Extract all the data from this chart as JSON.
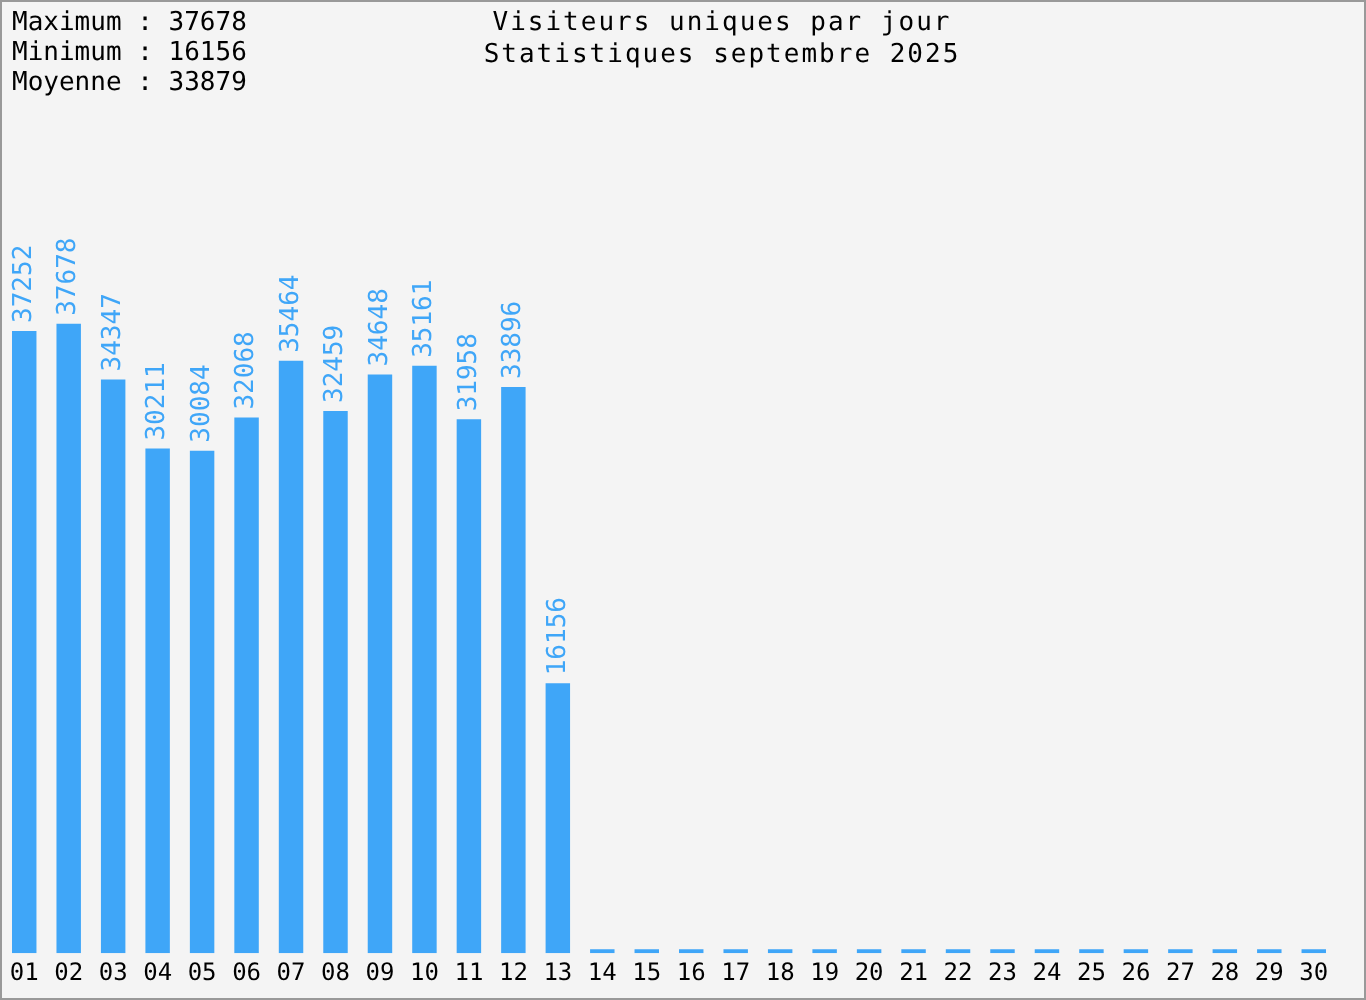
{
  "chart_data": {
    "type": "bar",
    "title": "Visiteurs uniques par jour",
    "subtitle": "Statistiques septembre 2025",
    "annotations": [
      "Maximum : 37678",
      "Minimum : 16156",
      "Moyenne : 33879"
    ],
    "categories": [
      "01",
      "02",
      "03",
      "04",
      "05",
      "06",
      "07",
      "08",
      "09",
      "10",
      "11",
      "12",
      "13",
      "14",
      "15",
      "16",
      "17",
      "18",
      "19",
      "20",
      "21",
      "22",
      "23",
      "24",
      "25",
      "26",
      "27",
      "28",
      "29",
      "30"
    ],
    "values": [
      37252,
      37678,
      34347,
      30211,
      30084,
      32068,
      35464,
      32459,
      34648,
      35161,
      31958,
      33896,
      16156,
      0,
      0,
      0,
      0,
      0,
      0,
      0,
      0,
      0,
      0,
      0,
      0,
      0,
      0,
      0,
      0,
      0
    ],
    "value_labels": [
      "37252",
      "37678",
      "34347",
      "30211",
      "30084",
      "32068",
      "35464",
      "32459",
      "34648",
      "35161",
      "31958",
      "33896",
      "16156",
      null,
      null,
      null,
      null,
      null,
      null,
      null,
      null,
      null,
      null,
      null,
      null,
      null,
      null,
      null,
      null,
      null
    ],
    "color": "#3fa6f8",
    "grid": false,
    "legend": false
  }
}
